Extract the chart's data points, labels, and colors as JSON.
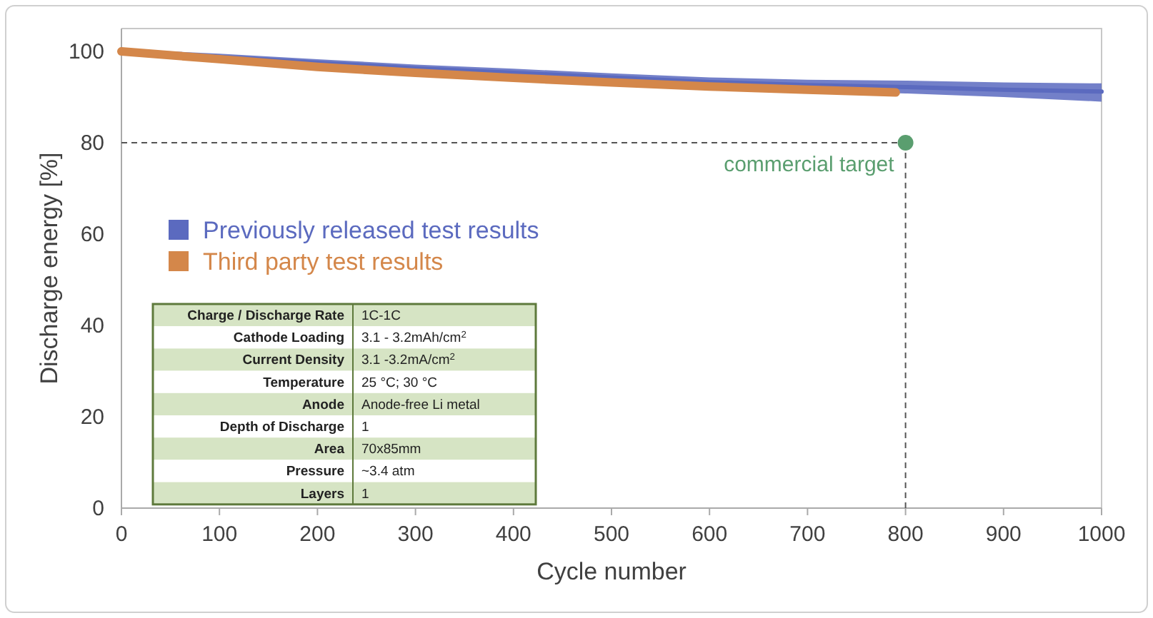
{
  "chart_data": {
    "type": "line",
    "xlabel": "Cycle number",
    "ylabel": "Discharge energy [%]",
    "xlim": [
      0,
      1000
    ],
    "xticks": [
      0,
      100,
      200,
      300,
      400,
      500,
      600,
      700,
      800,
      900,
      1000
    ],
    "ylim": [
      0,
      105
    ],
    "yticks": [
      0,
      20,
      40,
      60,
      80,
      100
    ],
    "grid": false,
    "legend": "left",
    "marker": "none",
    "line_style": "solid",
    "series": [
      {
        "name": "Previously released test results",
        "color": "#5b6abf",
        "x": [
          0,
          100,
          200,
          300,
          400,
          500,
          600,
          700,
          800,
          900,
          1000
        ],
        "values": [
          100,
          98.8,
          97.5,
          96.3,
          95.3,
          94.3,
          93.3,
          92.6,
          92.2,
          91.6,
          91.2
        ],
        "lower": [
          99.5,
          98,
          96.7,
          95.4,
          94.3,
          93.3,
          92.2,
          91.4,
          90.8,
          90,
          89
        ],
        "upper": [
          100.5,
          99.5,
          98.3,
          97.1,
          96.2,
          95.2,
          94.3,
          93.8,
          93.6,
          93.2,
          93
        ]
      },
      {
        "name": "Third party test results",
        "color": "#d4874a",
        "x": [
          0,
          100,
          200,
          300,
          400,
          500,
          600,
          700,
          790
        ],
        "values": [
          100,
          98.3,
          96.6,
          95.3,
          94.2,
          93.2,
          92.3,
          91.6,
          91
        ]
      },
      {
        "type": "scatter",
        "color": "#5a9e6f",
        "x": [
          800
        ],
        "values": [
          80
        ],
        "marker": "circle"
      }
    ],
    "ref_lines": [
      {
        "axis": "x",
        "value": 800,
        "label": null,
        "color": "#555555",
        "line_style": "dashed"
      },
      {
        "axis": "y",
        "value": 80,
        "label": null,
        "color": "#555555",
        "line_style": "dashed"
      }
    ],
    "annotations": [
      {
        "text": "commercial target",
        "x": 800,
        "y": 80
      },
      "Charge / Discharge Rate",
      "1C-1C",
      "Cathode Loading",
      "3.1 - 3.2mAh/cm$^{2}$",
      "Current Density",
      "3.1 -3.2mA/cm$^{2}$",
      "Temperature",
      "25 °C; 30 °C",
      "Anode",
      "Anode-free Li metal",
      "Depth of Discharge",
      "1",
      "Area",
      "70x85mm",
      "Pressure",
      "~3.4 atm",
      "Layers",
      "1"
    ]
  }
}
